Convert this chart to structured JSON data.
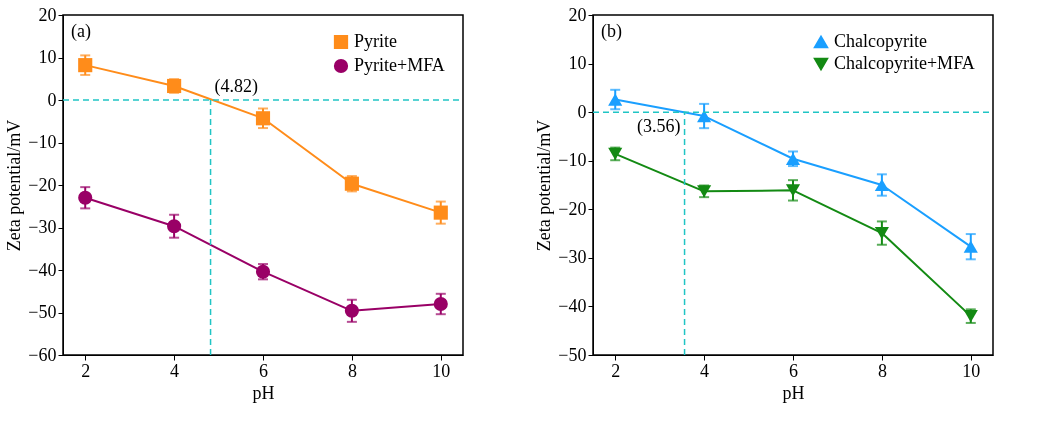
{
  "chart_data": [
    {
      "type": "line",
      "xlabel": "pH",
      "ylabel": "Zeta potential/mV",
      "x": [
        2,
        4,
        6,
        8,
        10
      ],
      "xlim": [
        1.5,
        10.5
      ],
      "xticks": [
        2,
        4,
        6,
        8,
        10
      ],
      "ylim": [
        -60,
        20
      ],
      "yticks": [
        -60,
        -50,
        -40,
        -30,
        -20,
        -10,
        0,
        10,
        20
      ],
      "grid": false,
      "legend": "top right",
      "series": [
        {
          "name": "Pyrite",
          "color": "#ff8c1a",
          "marker": "square",
          "values": [
            8.2,
            3.3,
            -4.3,
            -19.7,
            -26.5
          ],
          "errors": [
            2.3,
            1.6,
            2.3,
            1.8,
            2.6
          ]
        },
        {
          "name": "Pyrite+MFA",
          "color": "#990066",
          "marker": "circle",
          "values": [
            -23,
            -29.7,
            -40.4,
            -49.6,
            -48
          ],
          "errors": [
            2.5,
            2.7,
            1.8,
            2.6,
            2.4
          ]
        }
      ],
      "ref_lines": [
        {
          "axis": "y",
          "value": 0,
          "color": "#20c5c5",
          "line_style": "dashed"
        },
        {
          "axis": "x",
          "value": 4.82,
          "color": "#20c5c5",
          "line_style": "dashed"
        }
      ],
      "annotations": [
        "(a)",
        {
          "text": "(4.82)",
          "x": 4.82,
          "y": 0
        }
      ]
    },
    {
      "type": "line",
      "xlabel": "pH",
      "ylabel": "Zeta potential/mV",
      "x": [
        2,
        4,
        6,
        8,
        10
      ],
      "xlim": [
        1.5,
        10.5
      ],
      "xticks": [
        2,
        4,
        6,
        8,
        10
      ],
      "ylim": [
        -50,
        20
      ],
      "yticks": [
        -50,
        -40,
        -30,
        -20,
        -10,
        0,
        10,
        20
      ],
      "grid": false,
      "legend": "top right",
      "series": [
        {
          "name": "Chalcopyrite",
          "color": "#1a9fff",
          "marker": "triangle",
          "values": [
            2.6,
            -0.8,
            -9.6,
            -15,
            -27.7
          ],
          "errors": [
            2,
            2.5,
            1.5,
            2.2,
            2.6
          ]
        },
        {
          "name": "Chalcopyrite+MFA",
          "color": "#138a13",
          "marker": "triangle-down",
          "values": [
            -8.6,
            -16.3,
            -16.1,
            -24.9,
            -42
          ],
          "errors": [
            1.3,
            1.2,
            2.1,
            2.4,
            1.4
          ]
        }
      ],
      "ref_lines": [
        {
          "axis": "y",
          "value": 0,
          "color": "#20c5c5",
          "line_style": "dashed"
        },
        {
          "axis": "x",
          "value": 3.56,
          "color": "#20c5c5",
          "line_style": "dashed"
        }
      ],
      "annotations": [
        "(b)",
        {
          "text": "(3.56)",
          "x": 3.56,
          "y": 0
        }
      ]
    }
  ]
}
